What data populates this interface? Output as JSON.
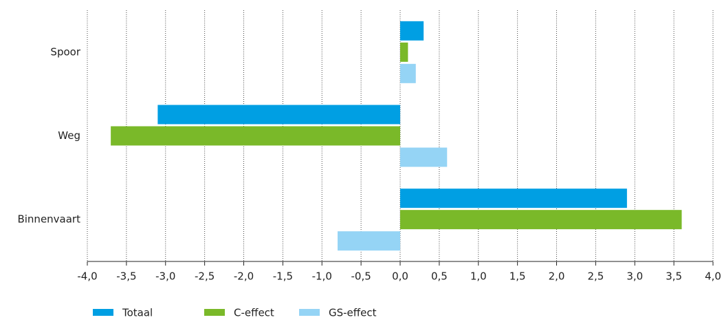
{
  "chart_data": {
    "type": "hbar",
    "categories": [
      "Spoor",
      "Weg",
      "Binnenvaart"
    ],
    "series": [
      {
        "name": "Totaal",
        "color": "#009fe3",
        "values": [
          0.3,
          -3.1,
          2.9
        ]
      },
      {
        "name": "C-effect",
        "color": "#7ab929",
        "values": [
          0.1,
          -3.7,
          3.6
        ]
      },
      {
        "name": "GS-effect",
        "color": "#95d4f5",
        "values": [
          0.2,
          0.6,
          -0.8
        ]
      }
    ],
    "xlim": [
      -4,
      4
    ],
    "xticks": [
      {
        "value": -4,
        "label": "-4,0"
      },
      {
        "value": -3.5,
        "label": "-3,5"
      },
      {
        "value": -3,
        "label": "-3,0"
      },
      {
        "value": -2.5,
        "label": "-2,5"
      },
      {
        "value": -2,
        "label": "-2,0"
      },
      {
        "value": -1.5,
        "label": "-1,5"
      },
      {
        "value": -1,
        "label": "-1,0"
      },
      {
        "value": -0.5,
        "label": "-0,5"
      },
      {
        "value": 0,
        "label": "0,0"
      },
      {
        "value": 0.5,
        "label": "0,5"
      },
      {
        "value": 1,
        "label": "1,0"
      },
      {
        "value": 1.5,
        "label": "1,5"
      },
      {
        "value": 2,
        "label": "2,0"
      },
      {
        "value": 2.5,
        "label": "2,5"
      },
      {
        "value": 3,
        "label": "3,0"
      },
      {
        "value": 3.5,
        "label": "3,5"
      },
      {
        "value": 4,
        "label": "4,0"
      }
    ],
    "grid": true,
    "legend": "bottom"
  }
}
